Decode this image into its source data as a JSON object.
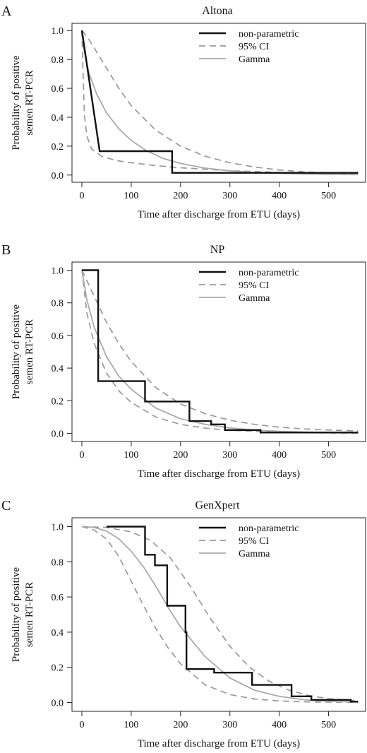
{
  "chart_data": [
    {
      "type": "line",
      "panel_label": "A",
      "title": "Altona",
      "xlabel": "Time after discharge from ETU (days)",
      "ylabel": [
        "Probability of positive",
        "semen RT-PCR"
      ],
      "xlim": [
        -20,
        575
      ],
      "ylim": [
        -0.05,
        1.05
      ],
      "xticks": [
        0,
        100,
        200,
        300,
        400,
        500
      ],
      "yticks": [
        0.0,
        0.2,
        0.4,
        0.6,
        0.8,
        1.0
      ],
      "legend": {
        "position": "top-right",
        "entries": [
          "non-parametric",
          "95% CI",
          "Gamma"
        ]
      },
      "series": [
        {
          "name": "non-parametric",
          "style": "step",
          "color": "#111111",
          "x": [
            0,
            36,
            36,
            183,
            183,
            560
          ],
          "y": [
            1.0,
            0.165,
            0.165,
            0.165,
            0.015,
            0.015
          ]
        },
        {
          "name": "95% CI",
          "style": "dashed",
          "color": "#999999",
          "x": [
            0,
            10,
            25,
            50,
            75,
            100,
            150,
            200,
            250,
            300,
            350,
            400,
            450,
            500,
            560
          ],
          "y": [
            1.0,
            0.96,
            0.88,
            0.74,
            0.6,
            0.48,
            0.31,
            0.2,
            0.13,
            0.085,
            0.055,
            0.035,
            0.022,
            0.015,
            0.01
          ]
        },
        {
          "name": "95% CI",
          "style": "dashed",
          "color": "#999999",
          "x": [
            0,
            2,
            5,
            10,
            20,
            40,
            70,
            100,
            150,
            200,
            300,
            400,
            500,
            560
          ],
          "y": [
            1.0,
            0.75,
            0.42,
            0.27,
            0.18,
            0.13,
            0.1,
            0.085,
            0.065,
            0.05,
            0.03,
            0.018,
            0.01,
            0.007
          ]
        },
        {
          "name": "Gamma",
          "style": "solid",
          "color": "#aaaaaa",
          "x": [
            0,
            5,
            15,
            30,
            50,
            75,
            100,
            130,
            165,
            200,
            250,
            300,
            350,
            400,
            450,
            500,
            560
          ],
          "y": [
            1.0,
            0.85,
            0.7,
            0.56,
            0.43,
            0.32,
            0.24,
            0.17,
            0.115,
            0.08,
            0.048,
            0.029,
            0.018,
            0.011,
            0.007,
            0.004,
            0.003
          ]
        }
      ]
    },
    {
      "type": "line",
      "panel_label": "B",
      "title": "NP",
      "xlabel": "Time after discharge from ETU (days)",
      "ylabel": [
        "Probability of positive",
        "semen RT-PCR"
      ],
      "xlim": [
        -20,
        575
      ],
      "ylim": [
        -0.05,
        1.05
      ],
      "xticks": [
        0,
        100,
        200,
        300,
        400,
        500
      ],
      "yticks": [
        0.0,
        0.2,
        0.4,
        0.6,
        0.8,
        1.0
      ],
      "legend": {
        "position": "top-right",
        "entries": [
          "non-parametric",
          "95% CI",
          "Gamma"
        ]
      },
      "series": [
        {
          "name": "non-parametric",
          "style": "step",
          "color": "#111111",
          "x": [
            0,
            33,
            33,
            128,
            128,
            218,
            218,
            262,
            262,
            290,
            290,
            362,
            362,
            560
          ],
          "y": [
            1.0,
            1.0,
            0.32,
            0.32,
            0.195,
            0.195,
            0.075,
            0.075,
            0.055,
            0.055,
            0.02,
            0.02,
            0.005,
            0.005
          ]
        },
        {
          "name": "95% CI",
          "style": "dashed",
          "color": "#999999",
          "x": [
            0,
            25,
            50,
            75,
            100,
            150,
            200,
            250,
            300,
            350,
            400,
            450,
            500,
            560
          ],
          "y": [
            1.0,
            0.84,
            0.68,
            0.55,
            0.44,
            0.28,
            0.18,
            0.12,
            0.08,
            0.055,
            0.038,
            0.027,
            0.02,
            0.015
          ]
        },
        {
          "name": "95% CI",
          "style": "dashed",
          "color": "#999999",
          "x": [
            0,
            10,
            25,
            50,
            75,
            100,
            150,
            200,
            250,
            300,
            400,
            500,
            560
          ],
          "y": [
            1.0,
            0.74,
            0.55,
            0.37,
            0.26,
            0.19,
            0.1,
            0.055,
            0.032,
            0.018,
            0.006,
            0.002,
            0.001
          ]
        },
        {
          "name": "Gamma",
          "style": "solid",
          "color": "#aaaaaa",
          "x": [
            0,
            10,
            25,
            50,
            75,
            100,
            150,
            200,
            250,
            300,
            350,
            400,
            450,
            500,
            560
          ],
          "y": [
            1.0,
            0.82,
            0.65,
            0.47,
            0.35,
            0.27,
            0.155,
            0.09,
            0.055,
            0.033,
            0.02,
            0.012,
            0.008,
            0.005,
            0.003
          ]
        }
      ]
    },
    {
      "type": "line",
      "panel_label": "C",
      "title": "GenXpert",
      "xlabel": "Time after discharge from ETU (days)",
      "ylabel": [
        "Probability of positive",
        "semen RT-PCR"
      ],
      "xlim": [
        -20,
        575
      ],
      "ylim": [
        -0.05,
        1.05
      ],
      "xticks": [
        0,
        100,
        200,
        300,
        400,
        500
      ],
      "yticks": [
        0.0,
        0.2,
        0.4,
        0.6,
        0.8,
        1.0
      ],
      "legend": {
        "position": "top-right",
        "entries": [
          "non-parametric",
          "95% CI",
          "Gamma"
        ]
      },
      "series": [
        {
          "name": "non-parametric",
          "style": "step",
          "color": "#111111",
          "x": [
            50,
            128,
            128,
            148,
            148,
            173,
            173,
            190,
            190,
            210,
            210,
            212,
            212,
            268,
            268,
            345,
            345,
            425,
            425,
            465,
            465,
            545,
            545,
            560
          ],
          "y": [
            1.0,
            1.0,
            0.84,
            0.84,
            0.78,
            0.78,
            0.55,
            0.55,
            0.55,
            0.55,
            0.4,
            0.4,
            0.19,
            0.19,
            0.17,
            0.17,
            0.1,
            0.1,
            0.035,
            0.035,
            0.015,
            0.015,
            0.005,
            0.005
          ]
        },
        {
          "name": "95% CI",
          "style": "dashed",
          "color": "#999999",
          "x": [
            0,
            50,
            100,
            140,
            180,
            220,
            260,
            300,
            340,
            380,
            420,
            460,
            500,
            560
          ],
          "y": [
            1.0,
            0.995,
            0.97,
            0.92,
            0.82,
            0.66,
            0.48,
            0.32,
            0.2,
            0.12,
            0.07,
            0.04,
            0.022,
            0.01
          ]
        },
        {
          "name": "95% CI",
          "style": "dashed",
          "color": "#999999",
          "x": [
            0,
            25,
            50,
            75,
            100,
            125,
            150,
            175,
            200,
            250,
            300,
            350,
            400,
            450,
            500,
            560
          ],
          "y": [
            1.0,
            0.98,
            0.93,
            0.83,
            0.69,
            0.55,
            0.42,
            0.31,
            0.22,
            0.1,
            0.045,
            0.02,
            0.009,
            0.004,
            0.002,
            0.001
          ]
        },
        {
          "name": "Gamma",
          "style": "solid",
          "color": "#aaaaaa",
          "x": [
            0,
            25,
            50,
            75,
            100,
            125,
            150,
            175,
            200,
            250,
            300,
            350,
            400,
            450,
            500,
            560
          ],
          "y": [
            1.0,
            0.995,
            0.975,
            0.93,
            0.86,
            0.77,
            0.66,
            0.54,
            0.43,
            0.26,
            0.14,
            0.07,
            0.035,
            0.016,
            0.007,
            0.003
          ]
        }
      ]
    }
  ]
}
